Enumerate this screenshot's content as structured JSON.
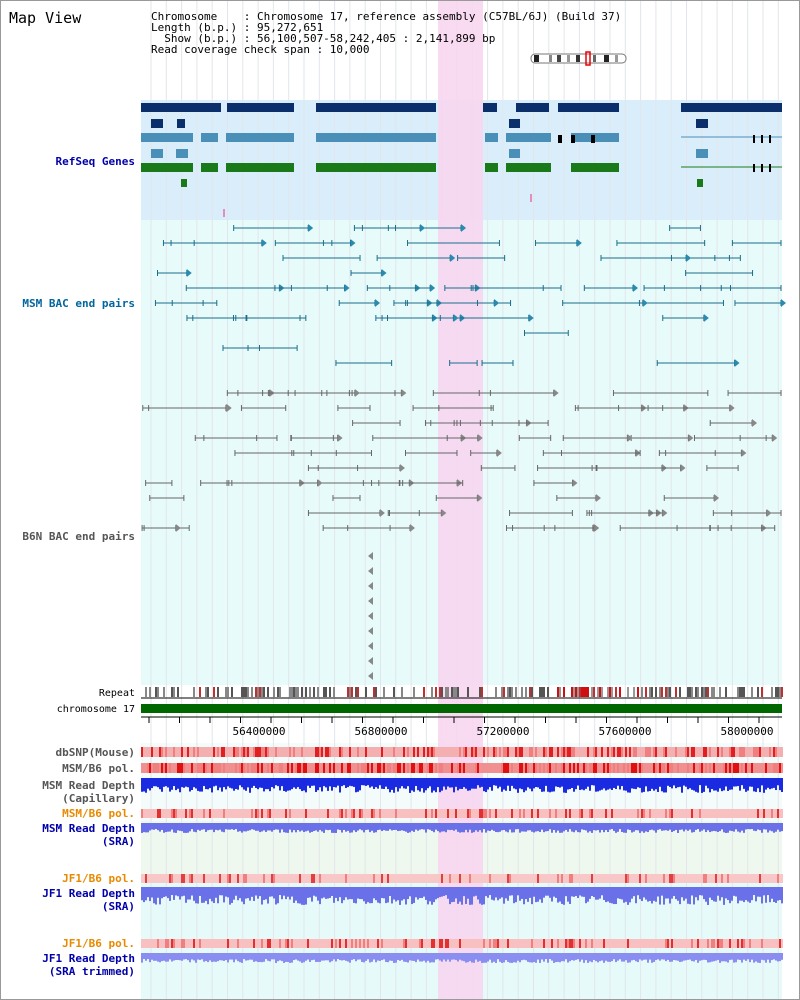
{
  "view_title": "Map View",
  "header": {
    "line1": "Chromosome    : Chromosome 17, reference assembly (C57BL/6J) (Build 37)",
    "line2": "Length (b.p.) : 95,272,651",
    "line3": "  Show (b.p.) : 56,100,507-58,242,405 : 2,141,899 bp",
    "line4": "Read coverage check span : 10,000"
  },
  "tracks": {
    "refseq": "RefSeq Genes",
    "msm_bac": "MSM BAC end pairs",
    "b6n_bac": "B6N BAC end pairs",
    "repeat": "Repeat",
    "chromosome": "chromosome 17",
    "dbsnp": "dbSNP(Mouse)",
    "msm_b6_pol_1": "MSM/B6 pol.",
    "msm_depth_cap": "MSM Read Depth\n(Capillary)",
    "msm_b6_pol_2": "MSM/B6 pol.",
    "msm_depth_sra": "MSM Read Depth\n(SRA)",
    "jf1_b6_pol_1": "JF1/B6 pol.",
    "jf1_depth_sra": "JF1 Read Depth\n(SRA)",
    "jf1_b6_pol_2": "JF1/B6 pol.",
    "jf1_depth_trim": "JF1 Read Depth\n(SRA trimmed)"
  },
  "axis": {
    "ticks": [
      "56400000",
      "56800000",
      "57200000",
      "57600000",
      "58000000"
    ]
  },
  "colors": {
    "highlight": "#f7d6f0",
    "refseq_bg": "#d9eefa",
    "bac_bg": "#e8fbfb",
    "chromosome": "#006600",
    "label_blue": "#0000aa",
    "label_teal": "#00669e",
    "label_gray": "#555555",
    "label_orange": "#e88a00"
  }
}
